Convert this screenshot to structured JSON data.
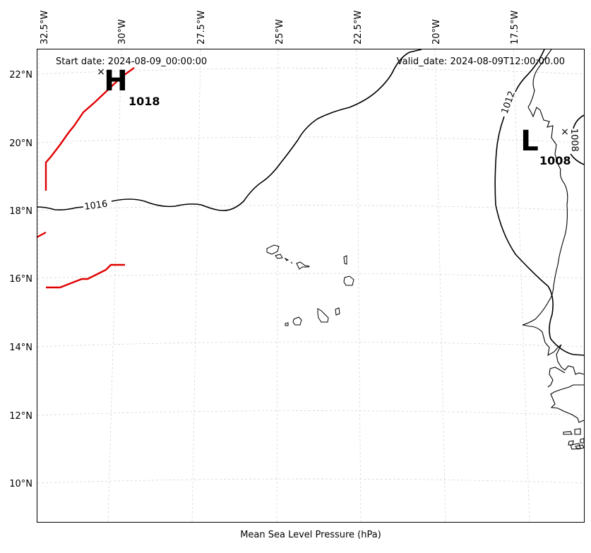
{
  "header": {
    "start_date": "Start date: 2024-08-09_00:00:00",
    "valid_date": "Valid_date: 2024-08-09T12:00:00.00"
  },
  "footer": {
    "caption": "Mean Sea Level Pressure (hPa)"
  },
  "axes": {
    "longitude_labels": [
      "32.5°W",
      "30°W",
      "27.5°W",
      "25°W",
      "22.5°W",
      "20°W",
      "17.5°W"
    ],
    "latitude_labels": [
      "22°N",
      "20°N",
      "18°N",
      "16°N",
      "14°N",
      "12°N",
      "10°N"
    ]
  },
  "pressure_centers": {
    "high": {
      "letter": "H",
      "value": "1018",
      "marker": "×",
      "color": "#000000"
    },
    "low": {
      "letter": "L",
      "value": "1008",
      "marker": "×",
      "color": "#000000"
    }
  },
  "isobars": {
    "labels": [
      "1016",
      "1012",
      "1008"
    ],
    "contour_color": "#000000",
    "high_pressure_color": "#e00000"
  },
  "colors": {
    "grid": "#c8c8c8",
    "coastline": "#000000",
    "frame": "#000000"
  }
}
